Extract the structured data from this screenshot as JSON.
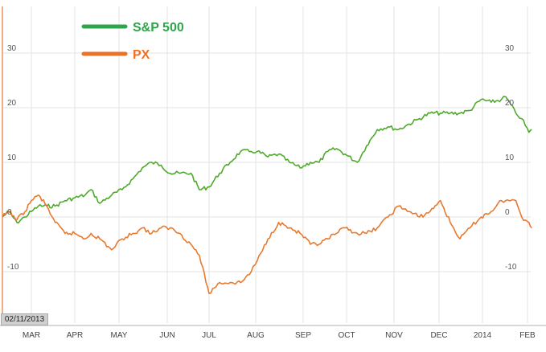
{
  "chart_data": {
    "type": "line",
    "title": "",
    "xlabel": "",
    "ylabel": "",
    "ylim": [
      -15,
      33
    ],
    "grid": true,
    "legend_position": "top-left",
    "start_date_label": "02/11/2013",
    "x_ticks": [
      "MAR",
      "APR",
      "MAY",
      "JUN",
      "JUL",
      "AUG",
      "SEP",
      "OCT",
      "NOV",
      "DEC",
      "2014",
      "FEB"
    ],
    "y_ticks": [
      30,
      20,
      10,
      0,
      -10
    ],
    "y_tick_labels": [
      "30",
      "20",
      "10",
      "0",
      "-10"
    ],
    "series": [
      {
        "name": "S&P 500",
        "color": "#4faa2b",
        "legend_color": "#2ea54a",
        "points": [
          [
            "2013-02-11",
            0
          ],
          [
            "2013-02-15",
            1
          ],
          [
            "2013-02-20",
            -1
          ],
          [
            "2013-02-25",
            0
          ],
          [
            "2013-03-01",
            1
          ],
          [
            "2013-03-06",
            2
          ],
          [
            "2013-03-12",
            2
          ],
          [
            "2013-03-18",
            2
          ],
          [
            "2013-03-25",
            3
          ],
          [
            "2013-04-01",
            3.5
          ],
          [
            "2013-04-08",
            4
          ],
          [
            "2013-04-12",
            5
          ],
          [
            "2013-04-18",
            2.5
          ],
          [
            "2013-04-26",
            4
          ],
          [
            "2013-05-03",
            5
          ],
          [
            "2013-05-10",
            7
          ],
          [
            "2013-05-16",
            9
          ],
          [
            "2013-05-22",
            10
          ],
          [
            "2013-05-28",
            9.5
          ],
          [
            "2013-06-03",
            8
          ],
          [
            "2013-06-10",
            8
          ],
          [
            "2013-06-18",
            8
          ],
          [
            "2013-06-24",
            5
          ],
          [
            "2013-07-01",
            5.5
          ],
          [
            "2013-07-08",
            8
          ],
          [
            "2013-07-15",
            10
          ],
          [
            "2013-07-22",
            12
          ],
          [
            "2013-07-29",
            12
          ],
          [
            "2013-08-02",
            12
          ],
          [
            "2013-08-09",
            11
          ],
          [
            "2013-08-16",
            11.5
          ],
          [
            "2013-08-23",
            10
          ],
          [
            "2013-08-30",
            9
          ],
          [
            "2013-09-06",
            10
          ],
          [
            "2013-09-12",
            10
          ],
          [
            "2013-09-18",
            12
          ],
          [
            "2013-09-24",
            12.5
          ],
          [
            "2013-09-30",
            11.5
          ],
          [
            "2013-10-08",
            10
          ],
          [
            "2013-10-14",
            13
          ],
          [
            "2013-10-21",
            16
          ],
          [
            "2013-10-28",
            16.5
          ],
          [
            "2013-11-04",
            16
          ],
          [
            "2013-11-11",
            17
          ],
          [
            "2013-11-18",
            18
          ],
          [
            "2013-11-25",
            19
          ],
          [
            "2013-12-02",
            19
          ],
          [
            "2013-12-09",
            19
          ],
          [
            "2013-12-16",
            19
          ],
          [
            "2013-12-23",
            19.5
          ],
          [
            "2013-12-31",
            21.5
          ],
          [
            "2014-01-07",
            21
          ],
          [
            "2014-01-14",
            21.5
          ],
          [
            "2014-01-17",
            22
          ],
          [
            "2014-01-24",
            19
          ],
          [
            "2014-01-28",
            18
          ],
          [
            "2014-02-03",
            15.5
          ],
          [
            "2014-02-07",
            16
          ]
        ]
      },
      {
        "name": "PX",
        "color": "#e8792e",
        "legend_color": "#ec7228",
        "points": [
          [
            "2013-02-11",
            0
          ],
          [
            "2013-02-15",
            1
          ],
          [
            "2013-02-20",
            -0.5
          ],
          [
            "2013-02-25",
            1
          ],
          [
            "2013-03-01",
            3
          ],
          [
            "2013-03-06",
            4
          ],
          [
            "2013-03-12",
            2
          ],
          [
            "2013-03-18",
            -1
          ],
          [
            "2013-03-25",
            -3
          ],
          [
            "2013-04-01",
            -3
          ],
          [
            "2013-04-08",
            -4
          ],
          [
            "2013-04-12",
            -3
          ],
          [
            "2013-04-18",
            -4
          ],
          [
            "2013-04-26",
            -6
          ],
          [
            "2013-05-03",
            -4
          ],
          [
            "2013-05-10",
            -3
          ],
          [
            "2013-05-16",
            -2
          ],
          [
            "2013-05-22",
            -3
          ],
          [
            "2013-05-28",
            -2
          ],
          [
            "2013-06-03",
            -2
          ],
          [
            "2013-06-10",
            -3
          ],
          [
            "2013-06-18",
            -5
          ],
          [
            "2013-06-24",
            -7
          ],
          [
            "2013-07-01",
            -14
          ],
          [
            "2013-07-08",
            -12
          ],
          [
            "2013-07-15",
            -12
          ],
          [
            "2013-07-22",
            -12
          ],
          [
            "2013-07-29",
            -10
          ],
          [
            "2013-08-02",
            -8
          ],
          [
            "2013-08-09",
            -4
          ],
          [
            "2013-08-16",
            -1
          ],
          [
            "2013-08-23",
            -2
          ],
          [
            "2013-08-30",
            -3
          ],
          [
            "2013-09-06",
            -5
          ],
          [
            "2013-09-12",
            -5
          ],
          [
            "2013-09-18",
            -4
          ],
          [
            "2013-09-24",
            -3
          ],
          [
            "2013-09-30",
            -2
          ],
          [
            "2013-10-08",
            -3
          ],
          [
            "2013-10-14",
            -3
          ],
          [
            "2013-10-21",
            -2
          ],
          [
            "2013-10-28",
            0
          ],
          [
            "2013-11-04",
            2
          ],
          [
            "2013-11-11",
            1
          ],
          [
            "2013-11-18",
            0
          ],
          [
            "2013-11-25",
            1
          ],
          [
            "2013-12-02",
            3
          ],
          [
            "2013-12-09",
            -1
          ],
          [
            "2013-12-16",
            -4
          ],
          [
            "2013-12-23",
            -2
          ],
          [
            "2013-12-31",
            0
          ],
          [
            "2014-01-07",
            1
          ],
          [
            "2014-01-14",
            3
          ],
          [
            "2014-01-17",
            3
          ],
          [
            "2014-01-24",
            3
          ],
          [
            "2014-01-28",
            0
          ],
          [
            "2014-02-03",
            -1
          ],
          [
            "2014-02-07",
            -2
          ]
        ]
      }
    ]
  }
}
